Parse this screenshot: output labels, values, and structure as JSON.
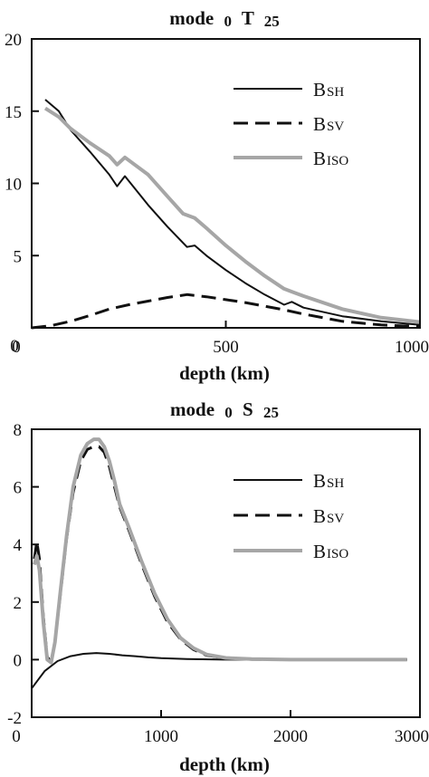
{
  "chart_data": [
    {
      "type": "line",
      "title": {
        "main": "mode",
        "n": "0",
        "letter": "T",
        "l": "25"
      },
      "xlabel": "depth (km)",
      "ylabel": "",
      "xlim": [
        0,
        1000
      ],
      "ylim": [
        0,
        20
      ],
      "xticks": [
        "0",
        "500",
        "1000"
      ],
      "yticks": [
        "0",
        "5",
        "10",
        "15",
        "20"
      ],
      "xtick_values": [
        0,
        500,
        1000
      ],
      "ytick_values": [
        0,
        5,
        10,
        15,
        20
      ],
      "legend_position": "top-right",
      "grid": false,
      "series": [
        {
          "name": "BSH",
          "label_main": "B",
          "label_sub": "SH",
          "color": "#111111",
          "style": "solid",
          "width": 2,
          "x": [
            35,
            70,
            100,
            150,
            200,
            220,
            240,
            300,
            350,
            400,
            420,
            450,
            500,
            550,
            600,
            650,
            670,
            700,
            800,
            900,
            1000
          ],
          "y": [
            15.8,
            15.0,
            13.7,
            12.2,
            10.6,
            9.8,
            10.5,
            8.5,
            7.0,
            5.6,
            5.7,
            5.0,
            4.0,
            3.1,
            2.3,
            1.6,
            1.8,
            1.4,
            0.8,
            0.45,
            0.2
          ]
        },
        {
          "name": "BSV",
          "label_main": "B",
          "label_sub": "SV",
          "color": "#111111",
          "style": "dashed",
          "width": 3,
          "x": [
            0,
            50,
            100,
            150,
            200,
            250,
            300,
            350,
            400,
            450,
            500,
            550,
            600,
            650,
            700,
            800,
            900,
            1000
          ],
          "y": [
            0.0,
            0.15,
            0.45,
            0.85,
            1.3,
            1.6,
            1.85,
            2.1,
            2.3,
            2.15,
            1.95,
            1.75,
            1.5,
            1.25,
            0.95,
            0.45,
            0.2,
            0.08
          ]
        },
        {
          "name": "BISO",
          "label_main": "B",
          "label_sub": "ISO",
          "color": "#a6a6a6",
          "style": "solid",
          "width": 4,
          "x": [
            35,
            70,
            100,
            150,
            200,
            220,
            240,
            300,
            350,
            390,
            420,
            450,
            500,
            550,
            600,
            650,
            670,
            700,
            800,
            900,
            1000
          ],
          "y": [
            15.2,
            14.6,
            13.8,
            12.8,
            11.9,
            11.3,
            11.8,
            10.6,
            9.1,
            7.9,
            7.6,
            6.9,
            5.7,
            4.6,
            3.6,
            2.7,
            2.5,
            2.2,
            1.3,
            0.7,
            0.4
          ]
        }
      ]
    },
    {
      "type": "line",
      "title": {
        "main": "mode",
        "n": "0",
        "letter": "S",
        "l": "25"
      },
      "xlabel": "depth (km)",
      "ylabel": "",
      "xlim": [
        0,
        3000
      ],
      "ylim": [
        -2,
        8
      ],
      "xticks": [
        "0",
        "1000",
        "2000",
        "3000"
      ],
      "yticks": [
        "-2",
        "0",
        "2",
        "4",
        "6",
        "8"
      ],
      "xtick_values": [
        0,
        1000,
        2000,
        3000
      ],
      "ytick_values": [
        -2,
        0,
        2,
        4,
        6,
        8
      ],
      "legend_position": "right",
      "grid": false,
      "series": [
        {
          "name": "BSH",
          "label_main": "B",
          "label_sub": "SH",
          "color": "#111111",
          "style": "solid",
          "width": 2,
          "x": [
            0,
            50,
            100,
            200,
            300,
            400,
            500,
            600,
            700,
            800,
            900,
            1000,
            1200,
            1500,
            2000,
            2500,
            2900
          ],
          "y": [
            -1.0,
            -0.7,
            -0.4,
            -0.05,
            0.12,
            0.2,
            0.23,
            0.2,
            0.15,
            0.12,
            0.08,
            0.05,
            0.02,
            0.0,
            0.0,
            0.0,
            0.0
          ]
        },
        {
          "name": "BSV",
          "label_main": "B",
          "label_sub": "SV",
          "color": "#111111",
          "style": "dashed",
          "width": 3,
          "x": [
            20,
            40,
            60,
            90,
            120,
            150,
            180,
            220,
            270,
            320,
            380,
            430,
            480,
            520,
            560,
            600,
            640,
            680,
            750,
            850,
            950,
            1050,
            1150,
            1250,
            1350,
            1500,
            1700,
            2000,
            2500,
            2900
          ],
          "y": [
            3.5,
            4.1,
            3.5,
            1.5,
            0.1,
            -0.1,
            0.6,
            2.2,
            4.2,
            5.8,
            6.9,
            7.3,
            7.4,
            7.4,
            7.2,
            6.7,
            6.0,
            5.3,
            4.5,
            3.3,
            2.2,
            1.3,
            0.7,
            0.35,
            0.15,
            0.05,
            0.01,
            0.0,
            0.0,
            0.0
          ]
        },
        {
          "name": "BISO",
          "label_main": "B",
          "label_sub": "ISO",
          "color": "#a6a6a6",
          "style": "solid",
          "width": 4,
          "x": [
            20,
            40,
            60,
            90,
            120,
            150,
            180,
            220,
            270,
            320,
            380,
            430,
            480,
            520,
            560,
            600,
            640,
            680,
            750,
            850,
            950,
            1050,
            1150,
            1250,
            1350,
            1500,
            1700,
            2000,
            2500,
            2900
          ],
          "y": [
            3.3,
            3.6,
            3.1,
            1.3,
            0.0,
            -0.1,
            0.6,
            2.3,
            4.3,
            6.0,
            7.1,
            7.5,
            7.65,
            7.65,
            7.4,
            6.9,
            6.2,
            5.4,
            4.6,
            3.4,
            2.3,
            1.4,
            0.75,
            0.4,
            0.18,
            0.06,
            0.02,
            0.0,
            0.0,
            0.0
          ]
        }
      ]
    }
  ]
}
